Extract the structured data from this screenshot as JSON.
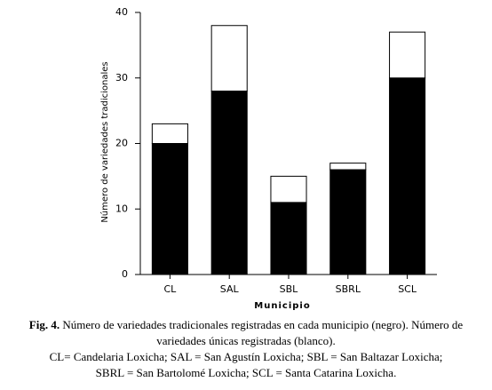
{
  "chart_data": {
    "type": "stacked-bar",
    "ylabel": "Número de variedades tradicionales",
    "xlabel": "Municipio",
    "categories": [
      "CL",
      "SAL",
      "SBL",
      "SBRL",
      "SCL"
    ],
    "series": [
      {
        "color": "#000000",
        "values": [
          20,
          28,
          11,
          16,
          30
        ]
      },
      {
        "color": "#ffffff",
        "values": [
          3,
          10,
          4,
          1,
          7
        ]
      }
    ],
    "ylim": [
      0,
      40
    ],
    "yticks": [
      0,
      10,
      20,
      30,
      40
    ],
    "grid": false,
    "caption_label": "Fig. 4.",
    "caption_first": "Número de variedades tradicionales registradas en cada municipio (negro). Número de variedades únicas registradas (blanco).",
    "caption_lines": [
      "CL= Candelaria Loxicha; SAL = San Agustín Loxicha; SBL = San Baltazar Loxicha;",
      "SBRL = San Bartolomé Loxicha; SCL = Santa Catarina Loxicha."
    ]
  }
}
